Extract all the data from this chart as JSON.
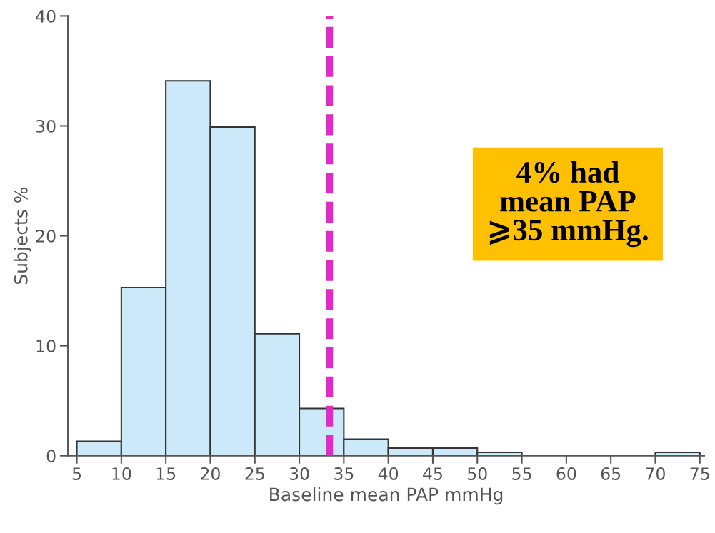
{
  "chart_data": {
    "type": "histogram",
    "xlabel": "Baseline mean PAP mmHg",
    "ylabel": "Subjects %",
    "bins": [
      5,
      10,
      15,
      20,
      25,
      30,
      35,
      40,
      45,
      50,
      55,
      60,
      65,
      70,
      75
    ],
    "values": [
      1.3,
      15.3,
      34.1,
      29.9,
      11.1,
      4.3,
      1.5,
      0.7,
      0.7,
      0.3,
      0,
      0,
      0,
      0.3
    ],
    "color": "#cce9f9",
    "xlim": [
      4,
      75.5
    ],
    "xticks": [
      5,
      10,
      15,
      20,
      25,
      30,
      35,
      40,
      45,
      50,
      55,
      60,
      65,
      70,
      75
    ],
    "ylim": [
      0,
      40
    ],
    "yticks": [
      0,
      10,
      20,
      30,
      40
    ],
    "ref_lines": [
      {
        "axis": "x",
        "value": 33.4,
        "color": "#e22ac8",
        "line_style": "dashed"
      }
    ],
    "annotations": [
      "4% had\nmean PAP\n⩾35 mmHg."
    ],
    "grid": false,
    "legend": false
  }
}
